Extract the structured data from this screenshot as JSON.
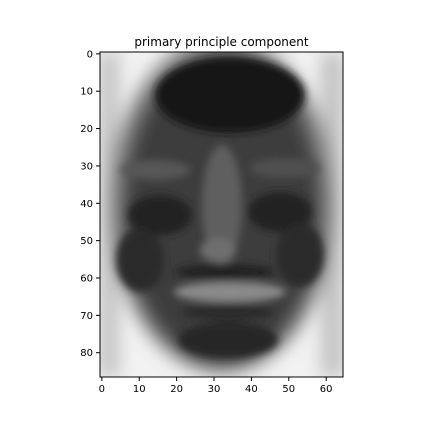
{
  "chart_data": {
    "type": "heatmap",
    "title": "primary principle component",
    "xlabel": "",
    "ylabel": "",
    "colormap": "gray",
    "image_shape": [
      87,
      65
    ],
    "xlim": [
      -0.5,
      64.5
    ],
    "ylim": [
      86.5,
      -0.5
    ],
    "xticks": [
      0,
      10,
      20,
      30,
      40,
      50,
      60
    ],
    "yticks": [
      0,
      10,
      20,
      30,
      40,
      50,
      60,
      70,
      80
    ],
    "grid": false,
    "colors": {
      "axes": "#000000",
      "background": "#ffffff"
    }
  }
}
